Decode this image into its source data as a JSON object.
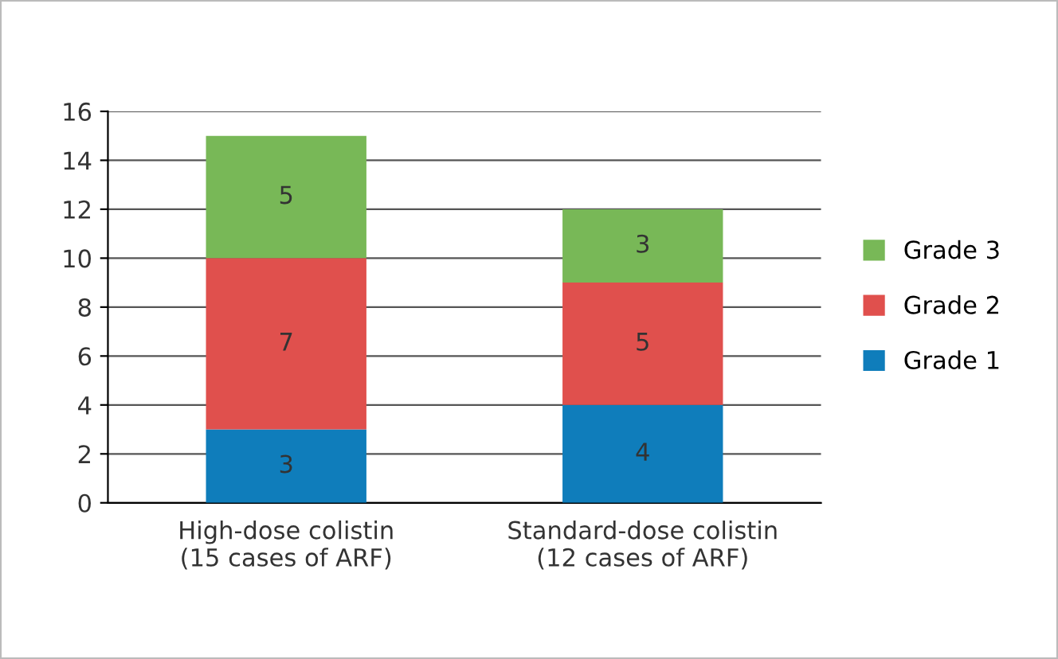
{
  "chart_data": {
    "type": "bar",
    "stacked": true,
    "categories": [
      "High-dose colistin\n(15 cases of ARF)",
      "Standard-dose colistin\n(12 cases of ARF)"
    ],
    "series": [
      {
        "name": "Grade 1",
        "color": "#0f7dbb",
        "values": [
          3,
          4
        ]
      },
      {
        "name": "Grade 2",
        "color": "#e0504d",
        "values": [
          7,
          5
        ]
      },
      {
        "name": "Grade 3",
        "color": "#78b857",
        "values": [
          5,
          3
        ]
      }
    ],
    "ylim": [
      0,
      16
    ],
    "yticks": [
      0,
      2,
      4,
      6,
      8,
      10,
      12,
      14,
      16
    ],
    "grid": "y",
    "legend": "right",
    "data_labels": true
  }
}
